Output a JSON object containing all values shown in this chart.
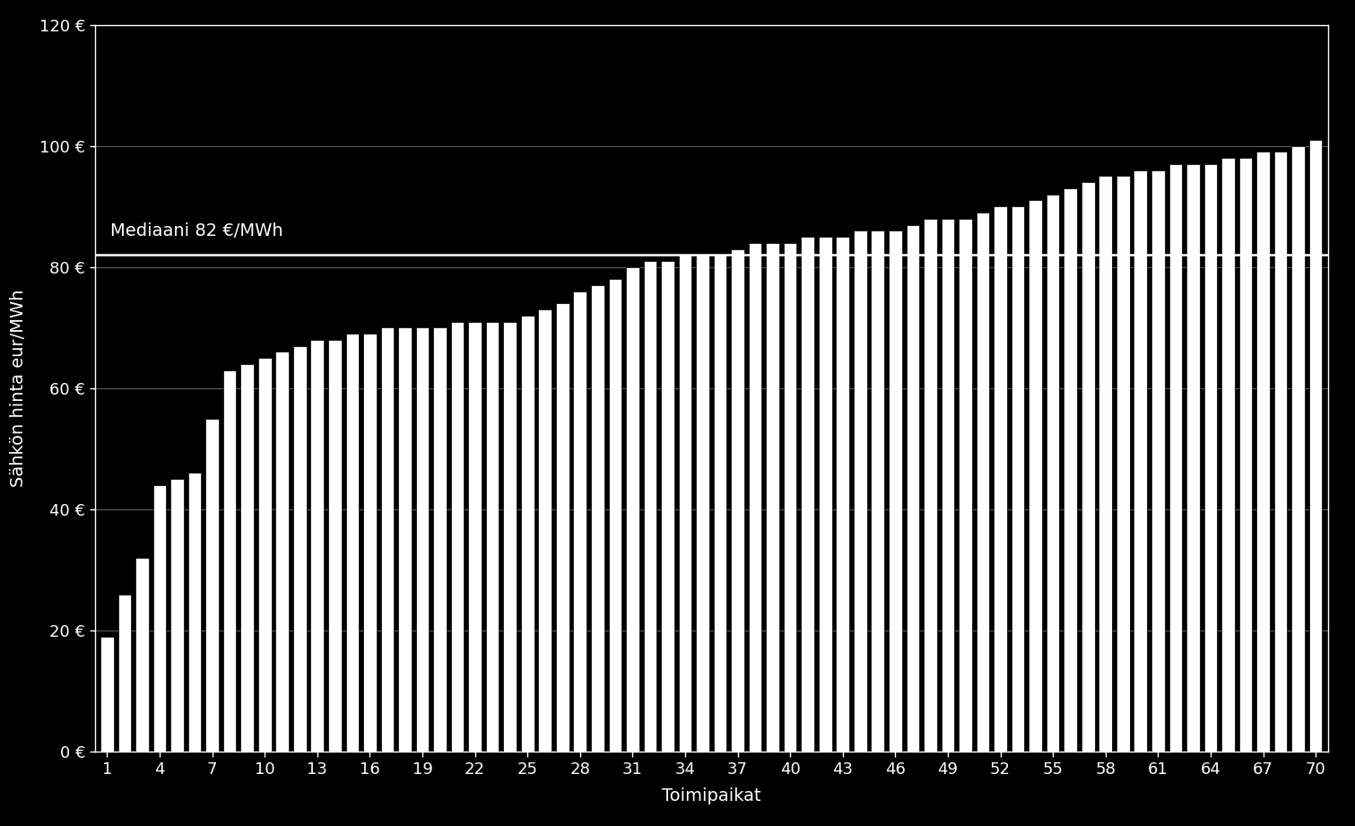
{
  "values": [
    19,
    26,
    32,
    44,
    45,
    46,
    55,
    63,
    64,
    65,
    66,
    67,
    68,
    68,
    69,
    69,
    70,
    70,
    70,
    70,
    71,
    71,
    71,
    71,
    72,
    73,
    74,
    76,
    77,
    78,
    80,
    81,
    81,
    82,
    82,
    82,
    83,
    84,
    84,
    84,
    85,
    85,
    85,
    86,
    86,
    86,
    87,
    88,
    88,
    88,
    89,
    90,
    90,
    91,
    92,
    93,
    94,
    95,
    95,
    96,
    96,
    97,
    97,
    97,
    98,
    98,
    99,
    99,
    100,
    101
  ],
  "n_bars": 70,
  "median_value": 82,
  "median_label": "Mediaani 82 €/MWh",
  "xlabel": "Toimipaikat",
  "ylabel": "Sähkön hinta eur/MWh",
  "ylim": [
    0,
    120
  ],
  "yticks": [
    0,
    20,
    40,
    60,
    80,
    100,
    120
  ],
  "ytick_labels": [
    "0 €",
    "20 €",
    "40 €",
    "60 €",
    "80 €",
    "100 €",
    "120 €"
  ],
  "xticks": [
    1,
    4,
    7,
    10,
    13,
    16,
    19,
    22,
    25,
    28,
    31,
    34,
    37,
    40,
    43,
    46,
    49,
    52,
    55,
    58,
    61,
    64,
    67,
    70
  ],
  "bar_color": "#ffffff",
  "bar_edge_color": "#000000",
  "background_color": "#000000",
  "grid_color": "#666666",
  "text_color": "#ffffff",
  "median_line_color": "#ffffff",
  "title_fontsize": 13,
  "axis_label_fontsize": 14,
  "tick_fontsize": 13
}
